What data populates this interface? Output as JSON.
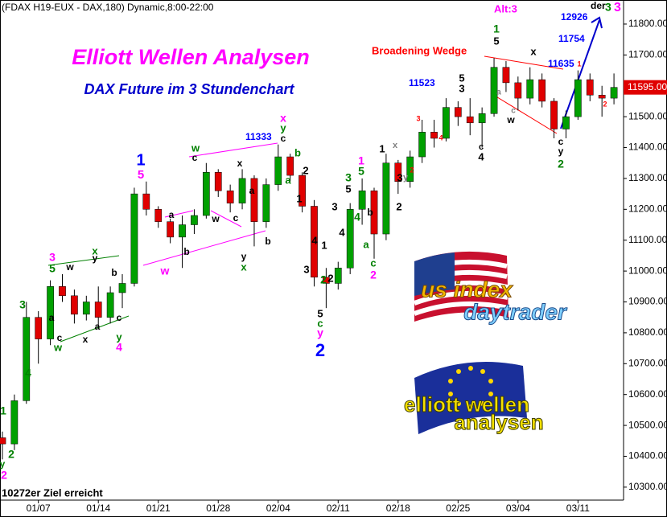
{
  "chart_data": {
    "type": "candlestick",
    "header": "(FDAX H19-EUX - DAX,180) Dynamic,8:00-22:00",
    "title": "Elliott Wellen Analysen",
    "subtitle": "DAX Future im 3 Stundenchart",
    "x": [
      0,
      1,
      2,
      3,
      4,
      5,
      6,
      7,
      8,
      9,
      10,
      11,
      12,
      13,
      14,
      15,
      16,
      17,
      18,
      19,
      20,
      21,
      22,
      23,
      24,
      25,
      26,
      27,
      28,
      29,
      30,
      31,
      32,
      33,
      34,
      35,
      36,
      37,
      38,
      39,
      40,
      41,
      42,
      43,
      44,
      45,
      46,
      47,
      48,
      49,
      50,
      51
    ],
    "open": [
      10460,
      10440,
      10580,
      10850,
      10780,
      10950,
      10920,
      10860,
      10900,
      10850,
      10930,
      10960,
      11250,
      11200,
      11160,
      11110,
      11150,
      11180,
      11320,
      11260,
      11220,
      11300,
      11160,
      11280,
      11370,
      11310,
      11210,
      10980,
      10960,
      11010,
      11200,
      11260,
      11120,
      11350,
      11290,
      11370,
      11450,
      11430,
      11530,
      11500,
      11480,
      11510,
      11660,
      11610,
      11560,
      11620,
      11550,
      11460,
      11500,
      11620,
      11570,
      11560
    ],
    "high": [
      10480,
      10600,
      10900,
      10870,
      10970,
      10990,
      10940,
      10920,
      10950,
      10950,
      10990,
      11270,
      11290,
      11210,
      11170,
      11180,
      11200,
      11350,
      11330,
      11280,
      11330,
      11310,
      11300,
      11410,
      11380,
      11320,
      11230,
      11010,
      11030,
      11220,
      11300,
      11270,
      11380,
      11360,
      11390,
      11490,
      11490,
      11560,
      11550,
      11560,
      11530,
      11690,
      11680,
      11630,
      11660,
      11640,
      11560,
      11520,
      11650,
      11640,
      11600,
      11640
    ],
    "low": [
      10390,
      10420,
      10570,
      10700,
      10760,
      10900,
      10830,
      10840,
      10820,
      10830,
      10880,
      10950,
      11180,
      11140,
      11090,
      11010,
      11120,
      11170,
      11240,
      11190,
      11200,
      11080,
      11140,
      11260,
      11290,
      11190,
      10950,
      10880,
      10940,
      10990,
      11150,
      11040,
      11100,
      11250,
      11270,
      11350,
      11400,
      11420,
      11470,
      11440,
      11400,
      11500,
      11580,
      11520,
      11540,
      11530,
      11430,
      11430,
      11490,
      11550,
      11500,
      11540
    ],
    "close": [
      10440,
      10580,
      10850,
      10780,
      10950,
      10920,
      10860,
      10900,
      10850,
      10930,
      10960,
      11250,
      11200,
      11160,
      11110,
      11150,
      11180,
      11320,
      11260,
      11220,
      11300,
      11160,
      11280,
      11370,
      11310,
      11210,
      10980,
      10960,
      11010,
      11200,
      11260,
      11120,
      11350,
      11290,
      11370,
      11450,
      11430,
      11530,
      11500,
      11480,
      11510,
      11660,
      11610,
      11560,
      11620,
      11550,
      11460,
      11500,
      11620,
      11570,
      11560,
      11595
    ],
    "up_color": "#00a000",
    "down_color": "#e00000",
    "xlim": [
      -0.2,
      51.8
    ],
    "ylim": [
      10258,
      11878
    ],
    "xticks": [
      {
        "value": 3,
        "label": "01/07"
      },
      {
        "value": 8,
        "label": "01/14"
      },
      {
        "value": 13,
        "label": "01/21"
      },
      {
        "value": 18,
        "label": "01/28"
      },
      {
        "value": 23,
        "label": "02/04"
      },
      {
        "value": 28,
        "label": "02/11"
      },
      {
        "value": 33,
        "label": "02/18"
      },
      {
        "value": 38,
        "label": "02/25"
      },
      {
        "value": 43,
        "label": "03/04"
      },
      {
        "value": 48,
        "label": "03/11"
      }
    ],
    "yticks": [
      {
        "value": 10300,
        "label": "10300.00"
      },
      {
        "value": 10400,
        "label": "10400.00"
      },
      {
        "value": 10500,
        "label": "10500.00"
      },
      {
        "value": 10600,
        "label": "10600.00"
      },
      {
        "value": 10700,
        "label": "10700.00"
      },
      {
        "value": 10800,
        "label": "10800.00"
      },
      {
        "value": 10900,
        "label": "10900.00"
      },
      {
        "value": 11000,
        "label": "11000.00"
      },
      {
        "value": 11100,
        "label": "11100.00"
      },
      {
        "value": 11200,
        "label": "11200.00"
      },
      {
        "value": 11300,
        "label": "11300.00"
      },
      {
        "value": 11400,
        "label": "11400.00"
      },
      {
        "value": 11500,
        "label": "11500.00"
      },
      {
        "value": 11600,
        "label": "11600.00"
      },
      {
        "value": 11700,
        "label": "11700.00"
      },
      {
        "value": 11800,
        "label": "11800.00"
      }
    ],
    "last_price": {
      "value": 11595,
      "label": "11595.00"
    },
    "annotations": [
      {
        "text": "Broadening Wedge",
        "color": "#ff0000"
      },
      {
        "text": "Alt:3",
        "color": "#ff00ff"
      },
      {
        "text": "der",
        "color": "#000000"
      },
      {
        "text": "3",
        "color": "#ff00ff"
      },
      {
        "text": "3",
        "color": "#008000"
      },
      {
        "text": "11333",
        "color": "#0000ff"
      },
      {
        "text": "11523",
        "color": "#0000ff"
      },
      {
        "text": "11635",
        "color": "#0000ff"
      },
      {
        "text": "11754",
        "color": "#0000ff"
      },
      {
        "text": "12926",
        "color": "#0000ff"
      },
      {
        "text": "10272er Ziel erreicht",
        "color": "#000000"
      },
      {
        "text": "y",
        "color": "#008000"
      },
      {
        "text": "2",
        "color": "#ff00ff"
      },
      {
        "text": "1",
        "color": "#008000"
      },
      {
        "text": "2",
        "color": "#008000"
      },
      {
        "text": "3",
        "color": "#008000"
      },
      {
        "text": "4",
        "color": "#008000"
      },
      {
        "text": "5",
        "color": "#008000"
      },
      {
        "text": "3",
        "color": "#ff00ff"
      },
      {
        "text": "w",
        "color": "#000000"
      },
      {
        "text": "a",
        "color": "#000000"
      },
      {
        "text": "c",
        "color": "#000000"
      },
      {
        "text": "w",
        "color": "#008000"
      },
      {
        "text": "x",
        "color": "#008000"
      },
      {
        "text": "y",
        "color": "#000000"
      },
      {
        "text": "x",
        "color": "#000000"
      },
      {
        "text": "a",
        "color": "#000000"
      },
      {
        "text": "b",
        "color": "#000000"
      },
      {
        "text": "c",
        "color": "#000000"
      },
      {
        "text": "y",
        "color": "#008000"
      },
      {
        "text": "4",
        "color": "#ff00ff"
      },
      {
        "text": "1",
        "color": "#0000ff"
      },
      {
        "text": "5",
        "color": "#ff00ff"
      },
      {
        "text": "a",
        "color": "#000000"
      },
      {
        "text": "b",
        "color": "#000000"
      },
      {
        "text": "w",
        "color": "#ff00ff"
      },
      {
        "text": "w",
        "color": "#008000"
      },
      {
        "text": "c",
        "color": "#000000"
      },
      {
        "text": "x",
        "color": "#000000"
      },
      {
        "text": "a",
        "color": "#000000"
      },
      {
        "text": "w",
        "color": "#000000"
      },
      {
        "text": "c",
        "color": "#000000"
      },
      {
        "text": "b",
        "color": "#000000"
      },
      {
        "text": "y",
        "color": "#000000"
      },
      {
        "text": "x",
        "color": "#008000"
      },
      {
        "text": "x",
        "color": "#ff00ff"
      },
      {
        "text": "y",
        "color": "#008000"
      },
      {
        "text": "c",
        "color": "#000000"
      },
      {
        "text": "b",
        "color": "#008000"
      },
      {
        "text": "a",
        "color": "#008000"
      },
      {
        "text": "2",
        "color": "#000000"
      },
      {
        "text": "1",
        "color": "#000000"
      },
      {
        "text": "4",
        "color": "#000000"
      },
      {
        "text": "3",
        "color": "#000000"
      },
      {
        "text": "1",
        "color": "#000000"
      },
      {
        "text": "2",
        "color": "#000000"
      },
      {
        "text": "2",
        "color": "#008000"
      },
      {
        "text": "5",
        "color": "#000000"
      },
      {
        "text": "c",
        "color": "#008000"
      },
      {
        "text": "y",
        "color": "#ff00ff"
      },
      {
        "text": "2",
        "color": "#0000ff"
      },
      {
        "text": "3",
        "color": "#000000"
      },
      {
        "text": "4",
        "color": "#000000"
      },
      {
        "text": "3",
        "color": "#008000"
      },
      {
        "text": "5",
        "color": "#000000"
      },
      {
        "text": "1",
        "color": "#ff00ff"
      },
      {
        "text": "5",
        "color": "#008000"
      },
      {
        "text": "4",
        "color": "#008000"
      },
      {
        "text": "a",
        "color": "#008000"
      },
      {
        "text": "c",
        "color": "#008000"
      },
      {
        "text": "2",
        "color": "#ff00ff"
      },
      {
        "text": "b",
        "color": "#000000"
      },
      {
        "text": "1",
        "color": "#000000"
      },
      {
        "text": "3",
        "color": "#000000"
      },
      {
        "text": "2",
        "color": "#000000"
      },
      {
        "text": "x",
        "color": "#808080"
      },
      {
        "text": "y",
        "color": "#808080"
      },
      {
        "text": "3",
        "color": "#ff0000"
      },
      {
        "text": "2",
        "color": "#ff0000"
      },
      {
        "text": "4",
        "color": "#ff0000"
      },
      {
        "text": "5",
        "color": "#000000"
      },
      {
        "text": "3",
        "color": "#000000"
      },
      {
        "text": "1",
        "color": "#008000"
      },
      {
        "text": "5",
        "color": "#000000"
      },
      {
        "text": "x",
        "color": "#000000"
      },
      {
        "text": "c",
        "color": "#000000"
      },
      {
        "text": "y",
        "color": "#000000"
      },
      {
        "text": "2",
        "color": "#008000"
      },
      {
        "text": "4",
        "color": "#000000"
      },
      {
        "text": "c",
        "color": "#000000"
      },
      {
        "text": "w",
        "color": "#000000"
      },
      {
        "text": "a",
        "color": "#808080"
      },
      {
        "text": "c",
        "color": "#808080"
      },
      {
        "text": "1",
        "color": "#ff0000"
      },
      {
        "text": "2",
        "color": "#ff0000"
      }
    ]
  },
  "logos": {
    "us_line1": "us index",
    "us_line2": "daytrader",
    "ew_line1": "elliott wellen",
    "ew_line2": "analysen"
  }
}
